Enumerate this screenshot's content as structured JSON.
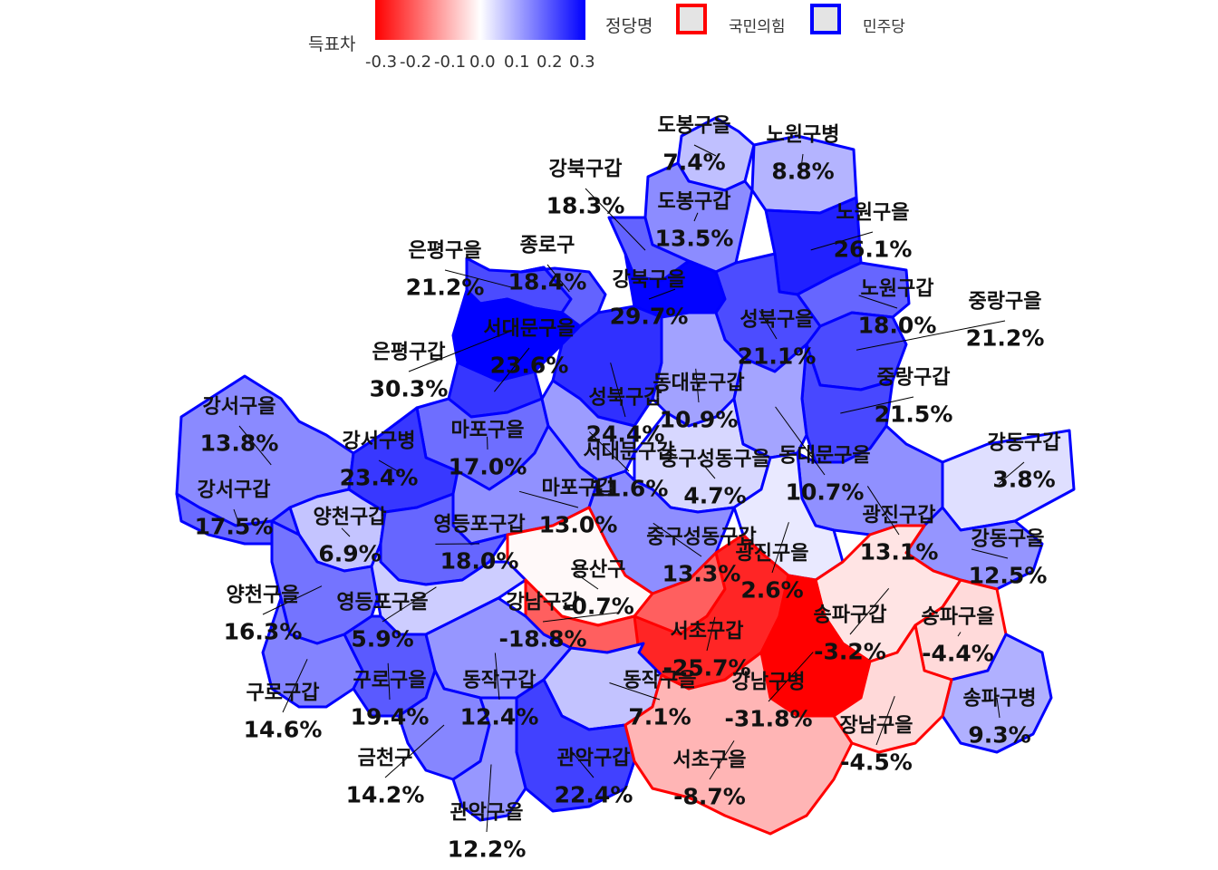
{
  "legend": {
    "fill_title": "득표차",
    "ticks": [
      "-0.3",
      "-0.2",
      "-0.1",
      "0.0",
      "0.1",
      "0.2",
      "0.3"
    ],
    "gradient_colors": [
      "#ff0000",
      "#ffffff",
      "#0000ff"
    ],
    "party_title": "정당명",
    "parties": [
      {
        "name": "국민의힘",
        "color": "#ff0000"
      },
      {
        "name": "민주당",
        "color": "#0000ff"
      }
    ]
  },
  "districts": [
    {
      "name": "도봉구을",
      "value": "7.4%",
      "margin": 0.074,
      "party": "민주당"
    },
    {
      "name": "노원구병",
      "value": "8.8%",
      "margin": 0.088,
      "party": "민주당"
    },
    {
      "name": "강북구갑",
      "value": "18.3%",
      "margin": 0.183,
      "party": "민주당"
    },
    {
      "name": "도봉구갑",
      "value": "13.5%",
      "margin": 0.135,
      "party": "민주당"
    },
    {
      "name": "노원구을",
      "value": "26.1%",
      "margin": 0.261,
      "party": "민주당"
    },
    {
      "name": "은평구을",
      "value": "21.2%",
      "margin": 0.212,
      "party": "민주당"
    },
    {
      "name": "종로구",
      "value": "18.4%",
      "margin": 0.184,
      "party": "민주당"
    },
    {
      "name": "강북구을",
      "value": "29.7%",
      "margin": 0.297,
      "party": "민주당"
    },
    {
      "name": "노원구갑",
      "value": "18.0%",
      "margin": 0.18,
      "party": "민주당"
    },
    {
      "name": "중랑구을",
      "value": "21.2%",
      "margin": 0.212,
      "party": "민주당"
    },
    {
      "name": "서대문구을",
      "value": "23.6%",
      "margin": 0.236,
      "party": "민주당"
    },
    {
      "name": "성북구을",
      "value": "21.1%",
      "margin": 0.211,
      "party": "민주당"
    },
    {
      "name": "은평구갑",
      "value": "30.3%",
      "margin": 0.303,
      "party": "민주당"
    },
    {
      "name": "동대문구갑",
      "value": "10.9%",
      "margin": 0.109,
      "party": "민주당"
    },
    {
      "name": "중랑구갑",
      "value": "21.5%",
      "margin": 0.215,
      "party": "민주당"
    },
    {
      "name": "강서구을",
      "value": "13.8%",
      "margin": 0.138,
      "party": "민주당"
    },
    {
      "name": "성북구갑",
      "value": "24.4%",
      "margin": 0.244,
      "party": "민주당"
    },
    {
      "name": "마포구을",
      "value": "17.0%",
      "margin": 0.17,
      "party": "민주당"
    },
    {
      "name": "강서구병",
      "value": "23.4%",
      "margin": 0.234,
      "party": "민주당"
    },
    {
      "name": "강동구갑",
      "value": "3.8%",
      "margin": 0.038,
      "party": "민주당"
    },
    {
      "name": "서대문구갑",
      "value": "11.6%",
      "margin": 0.116,
      "party": "민주당"
    },
    {
      "name": "중구성동구을",
      "value": "4.7%",
      "margin": 0.047,
      "party": "민주당"
    },
    {
      "name": "동대문구을",
      "value": "10.7%",
      "margin": 0.107,
      "party": "민주당"
    },
    {
      "name": "강서구갑",
      "value": "17.5%",
      "margin": 0.175,
      "party": "민주당"
    },
    {
      "name": "마포구갑",
      "value": "13.0%",
      "margin": 0.13,
      "party": "민주당"
    },
    {
      "name": "광진구갑",
      "value": "13.1%",
      "margin": 0.131,
      "party": "민주당"
    },
    {
      "name": "양천구갑",
      "value": "6.9%",
      "margin": 0.069,
      "party": "민주당"
    },
    {
      "name": "영등포구갑",
      "value": "18.0%",
      "margin": 0.18,
      "party": "민주당"
    },
    {
      "name": "중구성동구갑",
      "value": "13.3%",
      "margin": 0.133,
      "party": "민주당"
    },
    {
      "name": "광진구을",
      "value": "2.6%",
      "margin": 0.026,
      "party": "민주당"
    },
    {
      "name": "용산구",
      "value": "-0.7%",
      "margin": -0.007,
      "party": "국민의힘"
    },
    {
      "name": "강동구을",
      "value": "12.5%",
      "margin": 0.125,
      "party": "민주당"
    },
    {
      "name": "양천구을",
      "value": "16.3%",
      "margin": 0.163,
      "party": "민주당"
    },
    {
      "name": "영등포구을",
      "value": "5.9%",
      "margin": 0.059,
      "party": "민주당"
    },
    {
      "name": "강남구갑",
      "value": "-18.8%",
      "margin": -0.188,
      "party": "국민의힘"
    },
    {
      "name": "송파구갑",
      "value": "-3.2%",
      "margin": -0.032,
      "party": "국민의힘"
    },
    {
      "name": "송파구을",
      "value": "-4.4%",
      "margin": -0.044,
      "party": "국민의힘"
    },
    {
      "name": "서초구갑",
      "value": "-25.7%",
      "margin": -0.257,
      "party": "국민의힘"
    },
    {
      "name": "구로구갑",
      "value": "14.6%",
      "margin": 0.146,
      "party": "민주당"
    },
    {
      "name": "구로구을",
      "value": "19.4%",
      "margin": 0.194,
      "party": "민주당"
    },
    {
      "name": "동작구갑",
      "value": "12.4%",
      "margin": 0.124,
      "party": "민주당"
    },
    {
      "name": "동작구을",
      "value": "7.1%",
      "margin": 0.071,
      "party": "민주당"
    },
    {
      "name": "강남구병",
      "value": "-31.8%",
      "margin": -0.318,
      "party": "국민의힘"
    },
    {
      "name": "송파구병",
      "value": "9.3%",
      "margin": 0.093,
      "party": "민주당"
    },
    {
      "name": "장남구을",
      "value": "-4.5%",
      "margin": -0.045,
      "party": "국민의힘"
    },
    {
      "name": "금천구",
      "value": "14.2%",
      "margin": 0.142,
      "party": "민주당"
    },
    {
      "name": "관악구갑",
      "value": "22.4%",
      "margin": 0.224,
      "party": "민주당"
    },
    {
      "name": "서초구을",
      "value": "-8.7%",
      "margin": -0.087,
      "party": "국민의힘"
    },
    {
      "name": "관악구을",
      "value": "12.2%",
      "margin": 0.122,
      "party": "민주당"
    }
  ]
}
